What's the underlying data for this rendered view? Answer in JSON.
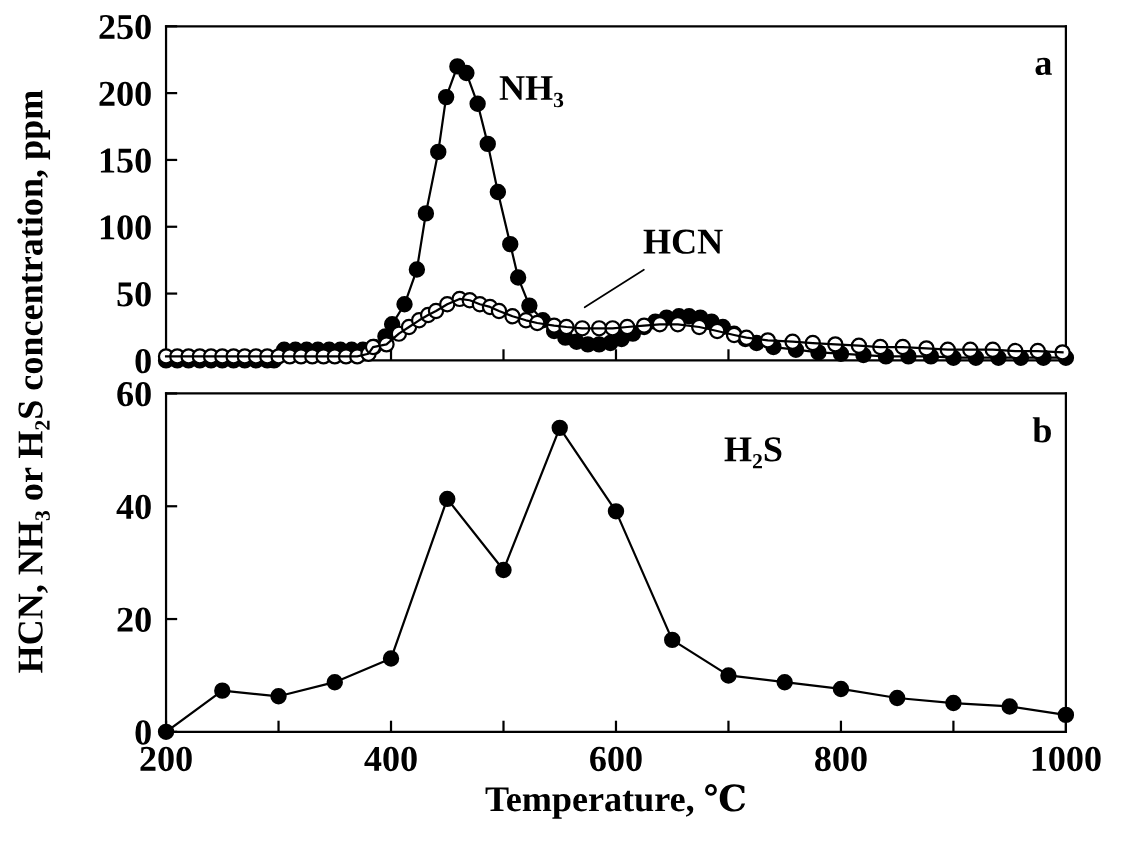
{
  "chart_data": [
    {
      "type": "line",
      "ylabel": "HCN, NH₃ or H₂S concentration, ppm",
      "annotations": [
        "a"
      ],
      "xlim": [
        200,
        1000
      ],
      "ylim": [
        0,
        250
      ],
      "xticks": [
        {
          "value": 200,
          "label": null
        },
        {
          "value": 300,
          "label": null
        },
        {
          "value": 400,
          "label": null
        },
        {
          "value": 500,
          "label": null
        },
        {
          "value": 600,
          "label": null
        },
        {
          "value": 700,
          "label": null
        },
        {
          "value": 800,
          "label": null
        },
        {
          "value": 900,
          "label": null
        },
        {
          "value": 1000,
          "label": null
        }
      ],
      "yticks": [
        0,
        50,
        100,
        150,
        200,
        250
      ],
      "tick_labels": "y",
      "marker": "circle",
      "grid": false,
      "legend": false,
      "series": [
        {
          "name": "NH₃",
          "color": "#000000",
          "x": [
            200,
            210,
            220,
            230,
            240,
            250,
            260,
            270,
            280,
            290,
            296,
            305,
            315,
            325,
            335,
            345,
            355,
            365,
            375,
            385,
            395,
            401,
            412,
            423,
            431,
            442,
            449,
            459,
            467,
            477,
            486,
            495,
            506,
            513,
            523,
            535,
            545,
            555,
            565,
            575,
            585,
            595,
            605,
            615,
            625,
            635,
            645,
            656,
            665,
            675,
            685,
            695,
            705,
            715,
            725,
            740,
            760,
            780,
            800,
            820,
            840,
            860,
            880,
            900,
            920,
            940,
            960,
            980,
            1000
          ],
          "values": [
            0,
            0,
            0,
            0,
            0,
            0,
            0,
            0,
            0,
            0,
            0,
            8,
            8,
            8,
            8,
            8,
            8,
            8,
            8,
            10,
            18,
            27,
            42,
            68,
            110,
            156,
            197,
            220,
            215,
            192,
            162,
            126,
            87,
            62,
            41,
            30,
            22,
            17,
            14,
            12,
            12,
            13,
            16,
            20,
            25,
            29,
            32,
            33,
            33,
            32,
            29,
            25,
            20,
            16,
            13,
            10,
            8,
            6,
            5,
            4,
            3,
            3,
            3,
            2,
            2,
            2,
            2,
            2,
            2
          ]
        },
        {
          "name": "HCN",
          "color": "#000000",
          "colors": [
            "#ffffff",
            "#ffffff",
            "#ffffff",
            "#ffffff",
            "#ffffff",
            "#ffffff",
            "#ffffff",
            "#ffffff",
            "#ffffff",
            "#ffffff",
            "#ffffff",
            "#ffffff",
            "#ffffff",
            "#ffffff",
            "#ffffff",
            "#ffffff",
            "#ffffff",
            "#ffffff",
            "#ffffff",
            "#ffffff",
            "#ffffff",
            "#ffffff",
            "#ffffff",
            "#ffffff",
            "#ffffff",
            "#ffffff",
            "#ffffff",
            "#ffffff",
            "#ffffff",
            "#ffffff",
            "#ffffff",
            "#ffffff",
            "#ffffff",
            "#ffffff",
            "#ffffff",
            "#ffffff",
            "#ffffff",
            "#ffffff",
            "#ffffff",
            "#ffffff",
            "#ffffff",
            "#ffffff",
            "#ffffff",
            "#ffffff",
            "#ffffff",
            "#ffffff",
            "#ffffff",
            "#ffffff",
            "#ffffff",
            "#ffffff",
            "#ffffff",
            "#ffffff",
            "#ffffff",
            "#ffffff",
            "#ffffff",
            "#ffffff",
            "#ffffff",
            "#ffffff",
            "#ffffff",
            "#ffffff",
            "#ffffff",
            "#ffffff"
          ],
          "x": [
            200,
            210,
            220,
            230,
            240,
            250,
            260,
            270,
            280,
            290,
            300,
            310,
            320,
            330,
            340,
            350,
            360,
            370,
            380,
            384,
            396,
            407,
            416,
            425,
            433,
            440,
            450,
            461,
            470,
            479,
            488,
            496,
            508,
            520,
            530,
            545,
            556,
            570,
            585,
            597,
            610,
            625,
            639,
            655,
            674,
            690,
            705,
            716,
            735,
            757,
            775,
            795,
            816,
            835,
            855,
            876,
            895,
            915,
            935,
            955,
            975,
            997
          ],
          "values": [
            3,
            3,
            3,
            3,
            3,
            3,
            3,
            3,
            3,
            3,
            3,
            3,
            3,
            3,
            3,
            3,
            3,
            3,
            5,
            10,
            12,
            20,
            25,
            30,
            34,
            37,
            42,
            46,
            45,
            42,
            40,
            37,
            33,
            30,
            28,
            26,
            25,
            24,
            24,
            24,
            25,
            26,
            27,
            27,
            25,
            22,
            19,
            17,
            15,
            14,
            13,
            12,
            11,
            10,
            10,
            9,
            8,
            8,
            8,
            7,
            7,
            6
          ]
        }
      ]
    },
    {
      "type": "line",
      "xlabel": "Temperature, ℃",
      "annotations": [
        "b"
      ],
      "xlim": [
        200,
        1000
      ],
      "ylim": [
        0,
        60
      ],
      "xticks": [
        200,
        {
          "value": 300,
          "label": null
        },
        400,
        {
          "value": 500,
          "label": null
        },
        600,
        {
          "value": 700,
          "label": null
        },
        800,
        {
          "value": 900,
          "label": null
        },
        1000
      ],
      "yticks": [
        0,
        20,
        40,
        60
      ],
      "marker": "circle",
      "grid": false,
      "legend": false,
      "series": [
        {
          "name": "H₂S",
          "color": "#000000",
          "x": [
            200,
            250,
            300,
            350,
            400,
            450,
            500,
            550,
            600,
            650,
            700,
            750,
            800,
            850,
            900,
            950,
            1000
          ],
          "values": [
            0,
            7.3,
            6.3,
            8.8,
            13,
            41.3,
            28.7,
            53.9,
            39.1,
            16.3,
            10,
            8.8,
            7.6,
            6,
            5.1,
            4.5,
            3
          ]
        }
      ]
    }
  ]
}
